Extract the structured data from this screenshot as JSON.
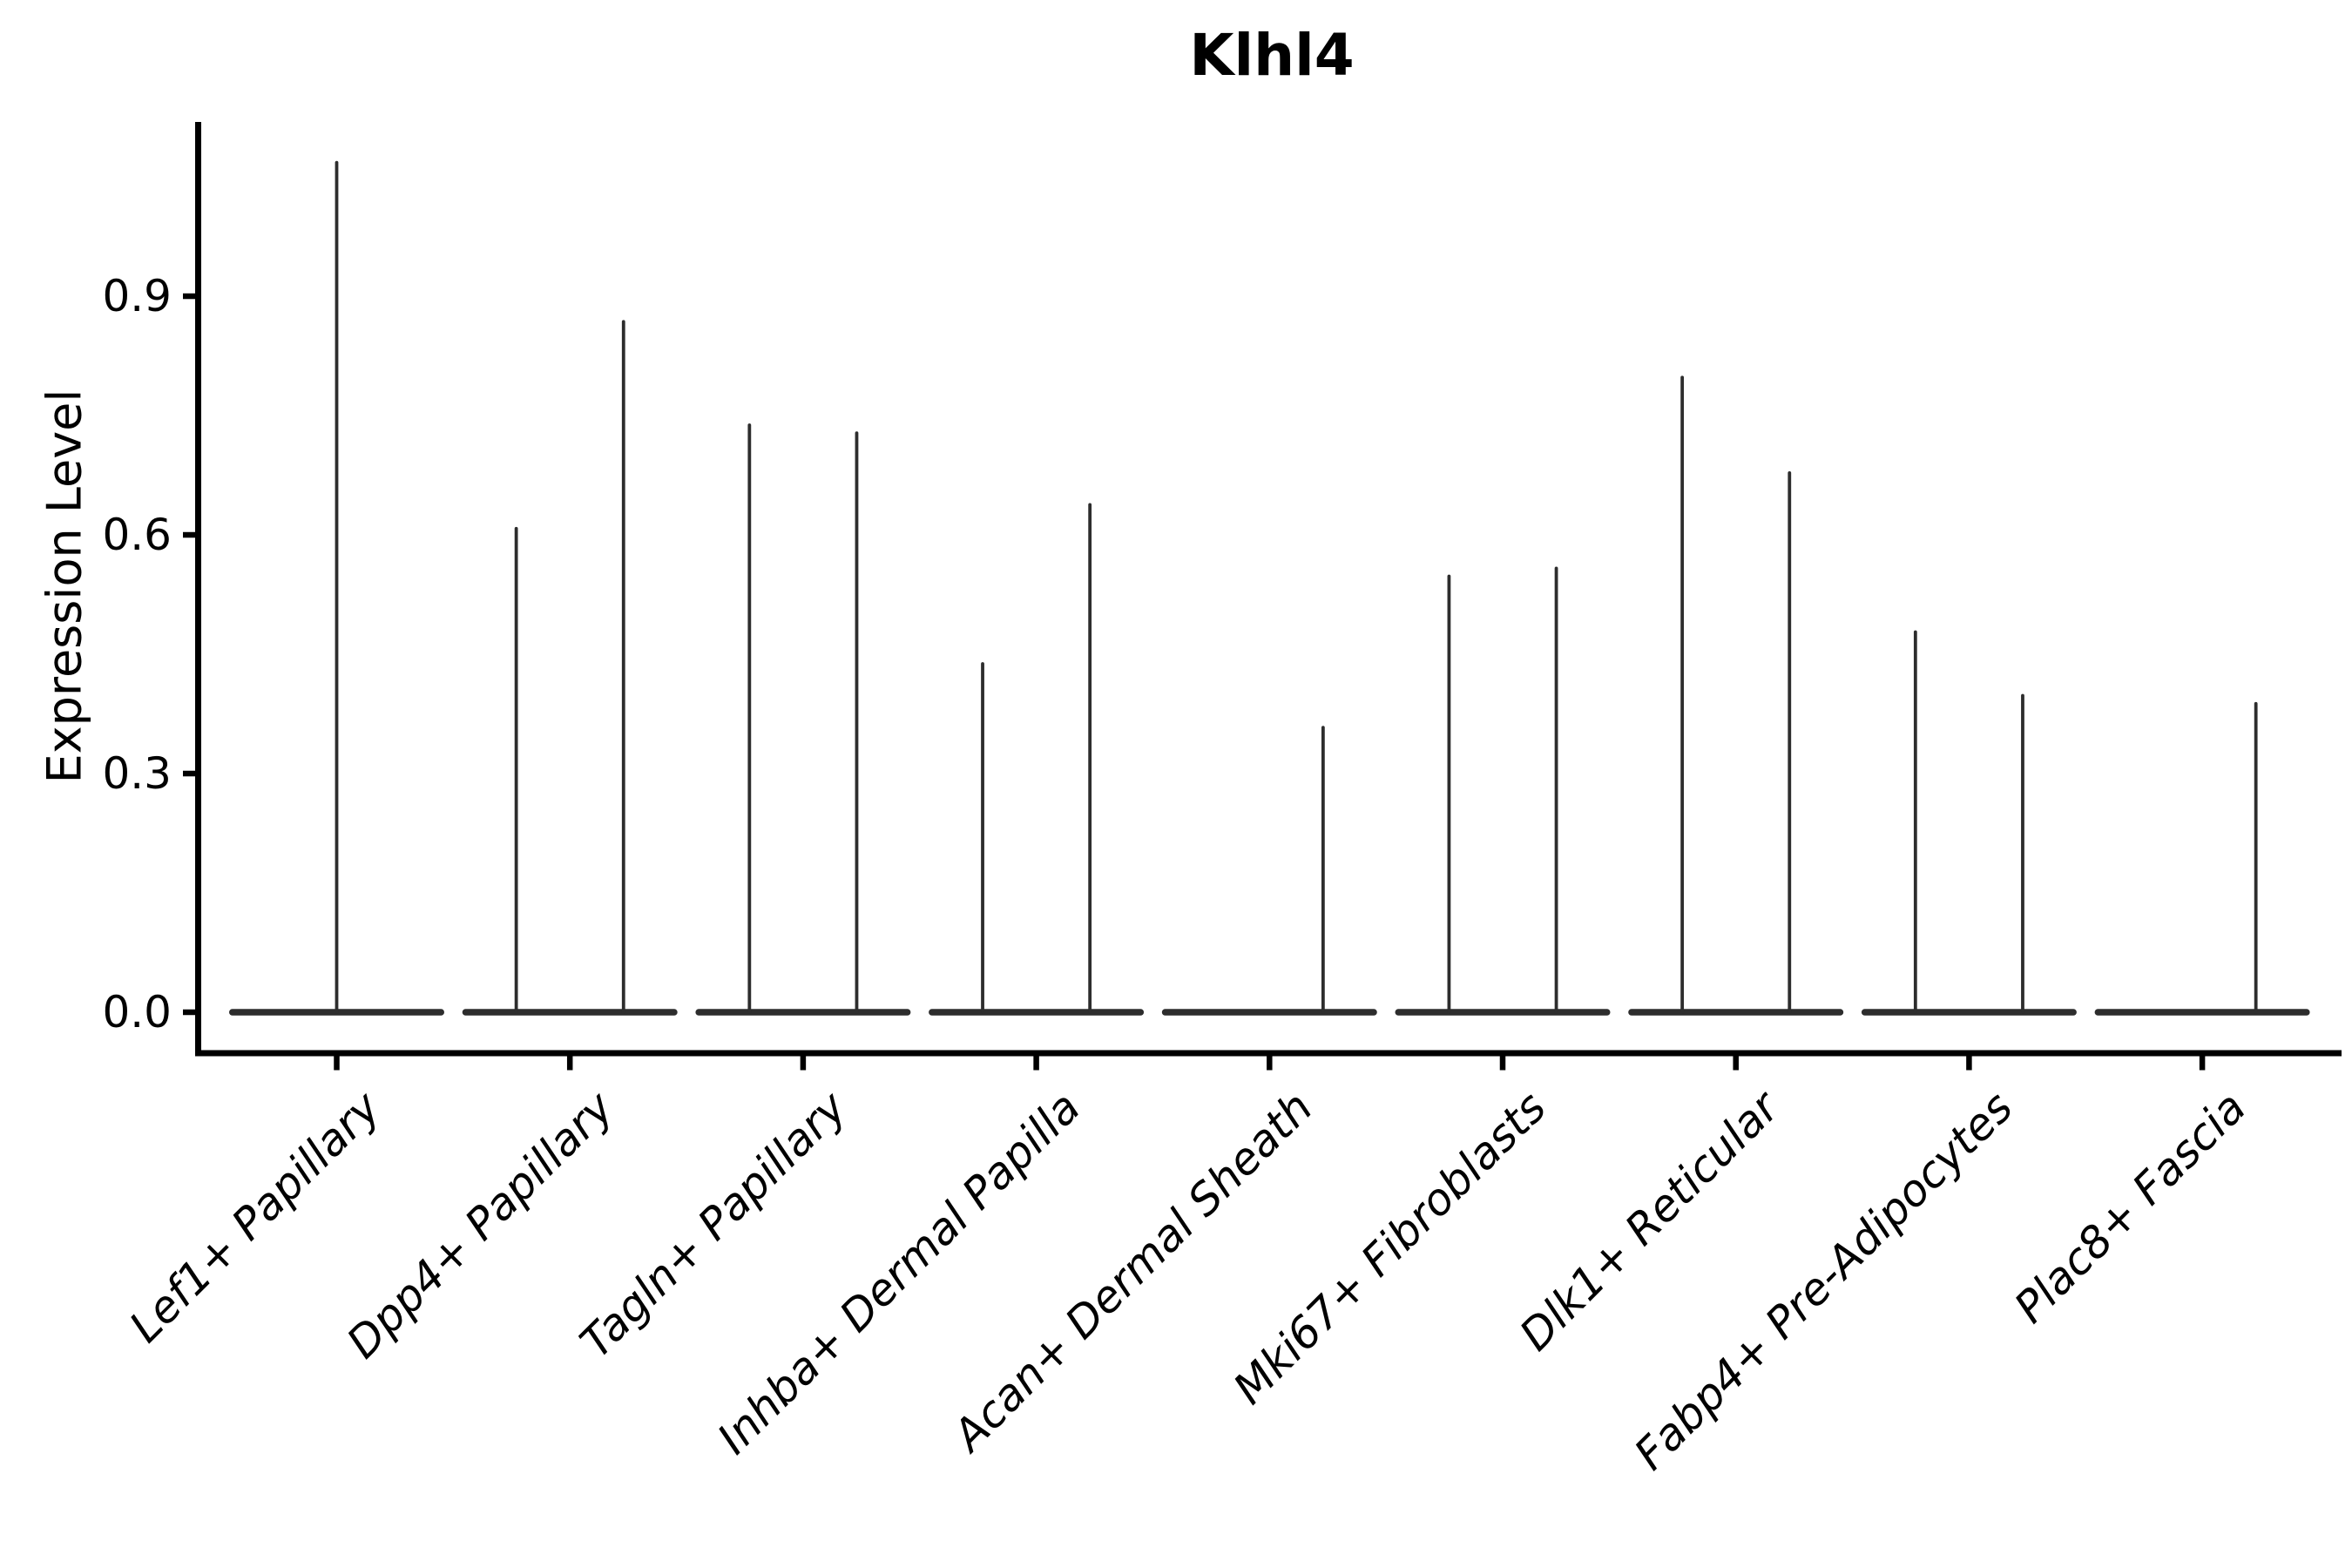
{
  "title": "Klhl4",
  "y_axis": {
    "label": "Expression Level",
    "tick_labels": [
      "0.0",
      "0.3",
      "0.6",
      "0.9"
    ]
  },
  "colors": {
    "axis": "#000000",
    "violin_line": "#2d2d2d",
    "text": "#000000",
    "background": "#ffffff"
  },
  "chart_data": {
    "type": "violin",
    "title": "Klhl4",
    "xlabel": "",
    "ylabel": "Expression Level",
    "ylim": [
      -0.05,
      1.12
    ],
    "yticks": [
      0.0,
      0.3,
      0.6,
      0.9
    ],
    "ytick_labels": [
      "0.0",
      "0.3",
      "0.6",
      "0.9"
    ],
    "grid": false,
    "legend": null,
    "baseline_value": 0.0,
    "description": "Collapsed violins: each category shows a flat density line at expression 0 with thin spikes reaching the maximum expression of rare expressing cells; offset is the spike position as a fraction of category spacing",
    "categories": [
      {
        "label": "Lef1+ Papillary",
        "violins": [
          {
            "offset": 0.0,
            "max": 1.07
          }
        ]
      },
      {
        "label": "Dpp4+ Papillary",
        "violins": [
          {
            "offset": -0.23,
            "max": 0.61
          },
          {
            "offset": 0.23,
            "max": 0.87
          }
        ]
      },
      {
        "label": "Tagln+ Papillary",
        "violins": [
          {
            "offset": -0.23,
            "max": 0.74
          },
          {
            "offset": 0.23,
            "max": 0.73
          }
        ]
      },
      {
        "label": "Inhba+ Dermal Papilla",
        "violins": [
          {
            "offset": -0.23,
            "max": 0.44
          },
          {
            "offset": 0.23,
            "max": 0.64
          }
        ]
      },
      {
        "label": "Acan+ Dermal Sheath",
        "violins": [
          {
            "offset": 0.23,
            "max": 0.36
          }
        ]
      },
      {
        "label": "Mki67+ Fibroblasts",
        "violins": [
          {
            "offset": -0.23,
            "max": 0.55
          },
          {
            "offset": 0.23,
            "max": 0.56
          }
        ]
      },
      {
        "label": "Dlk1+ Reticular",
        "violins": [
          {
            "offset": -0.23,
            "max": 0.8
          },
          {
            "offset": 0.23,
            "max": 0.68
          }
        ]
      },
      {
        "label": "Fabp4+ Pre-Adipocytes",
        "violins": [
          {
            "offset": -0.23,
            "max": 0.48
          },
          {
            "offset": 0.23,
            "max": 0.4
          }
        ]
      },
      {
        "label": "Plac8+ Fascia",
        "violins": [
          {
            "offset": 0.23,
            "max": 0.39
          }
        ]
      }
    ]
  }
}
